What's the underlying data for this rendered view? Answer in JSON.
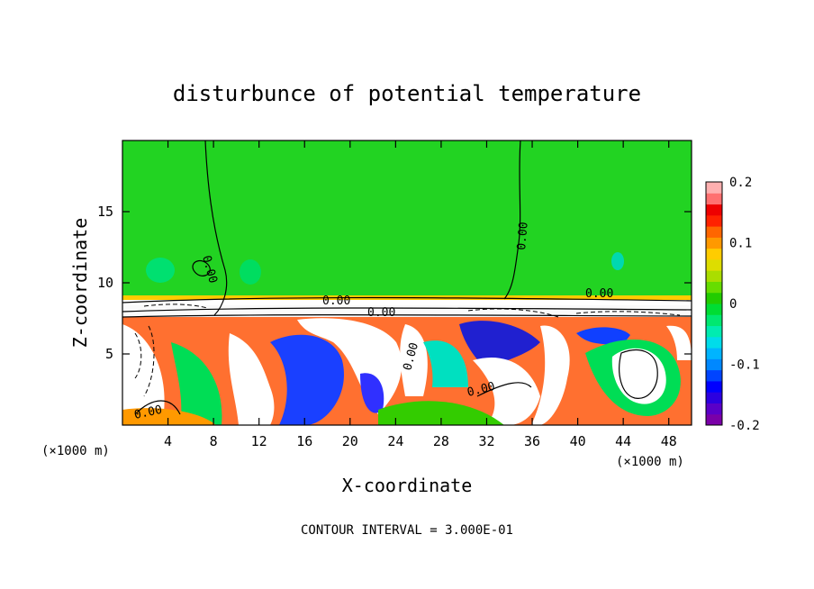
{
  "chart_data": {
    "type": "heatmap",
    "title": "disturbunce of potential temperature",
    "xlabel": "X-coordinate",
    "ylabel": "Z-coordinate",
    "x_unit": "(×1000 m)",
    "x_unit_right": "(×1000 m)",
    "xlim": [
      0,
      50
    ],
    "ylim": [
      0,
      20
    ],
    "x_ticks": [
      4,
      8,
      12,
      16,
      20,
      24,
      28,
      32,
      36,
      40,
      44,
      48
    ],
    "y_ticks": [
      5,
      10,
      15
    ],
    "colorbar": {
      "range": [
        -0.2,
        0.2
      ],
      "tick_labels": [
        "0.2",
        "0.1",
        "0",
        "-0.1",
        "-0.2"
      ],
      "tick_values": [
        0.2,
        0.1,
        0,
        -0.1,
        -0.2
      ],
      "colors": [
        "#7a00a8",
        "#5a00c8",
        "#2c00e0",
        "#0000ff",
        "#0044ff",
        "#0088ff",
        "#00b4ff",
        "#00dcea",
        "#00ecb0",
        "#00e870",
        "#00dd33",
        "#22cc00",
        "#66dd00",
        "#aadd00",
        "#dddd00",
        "#ffcc00",
        "#ff9900",
        "#ff6600",
        "#ff2200",
        "#ee0000",
        "#ff7070",
        "#ffb0b0"
      ]
    },
    "contour_labels": [
      "0.00",
      "0.00",
      "0.00",
      "0.00",
      "0.00",
      "0.00",
      "0.00",
      "0.00"
    ],
    "contour_interval_text": "CONTOUR INTERVAL = 3.000E-01"
  }
}
